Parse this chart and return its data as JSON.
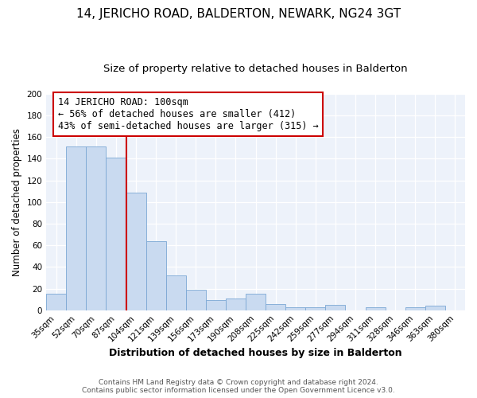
{
  "title": "14, JERICHO ROAD, BALDERTON, NEWARK, NG24 3GT",
  "subtitle": "Size of property relative to detached houses in Balderton",
  "xlabel": "Distribution of detached houses by size in Balderton",
  "ylabel": "Number of detached properties",
  "categories": [
    "35sqm",
    "52sqm",
    "70sqm",
    "87sqm",
    "104sqm",
    "121sqm",
    "139sqm",
    "156sqm",
    "173sqm",
    "190sqm",
    "208sqm",
    "225sqm",
    "242sqm",
    "259sqm",
    "277sqm",
    "294sqm",
    "311sqm",
    "328sqm",
    "346sqm",
    "363sqm",
    "380sqm"
  ],
  "values": [
    15,
    151,
    151,
    141,
    109,
    64,
    32,
    19,
    9,
    11,
    15,
    6,
    3,
    3,
    5,
    0,
    3,
    0,
    3,
    4,
    0
  ],
  "bar_color": "#c9daf0",
  "bar_edge_color": "#7ba7d4",
  "vline_x_index": 4,
  "vline_color": "#cc0000",
  "annotation_text": "14 JERICHO ROAD: 100sqm\n← 56% of detached houses are smaller (412)\n43% of semi-detached houses are larger (315) →",
  "annotation_box_color": "white",
  "annotation_box_edge": "#cc0000",
  "ylim": [
    0,
    200
  ],
  "yticks": [
    0,
    20,
    40,
    60,
    80,
    100,
    120,
    140,
    160,
    180,
    200
  ],
  "footer_line1": "Contains HM Land Registry data © Crown copyright and database right 2024.",
  "footer_line2": "Contains public sector information licensed under the Open Government Licence v3.0.",
  "bg_color": "#edf2fa",
  "fig_bg_color": "#ffffff",
  "title_fontsize": 11,
  "subtitle_fontsize": 9.5,
  "xlabel_fontsize": 9,
  "ylabel_fontsize": 8.5,
  "tick_fontsize": 7.5,
  "annotation_fontsize": 8.5,
  "footer_fontsize": 6.5
}
